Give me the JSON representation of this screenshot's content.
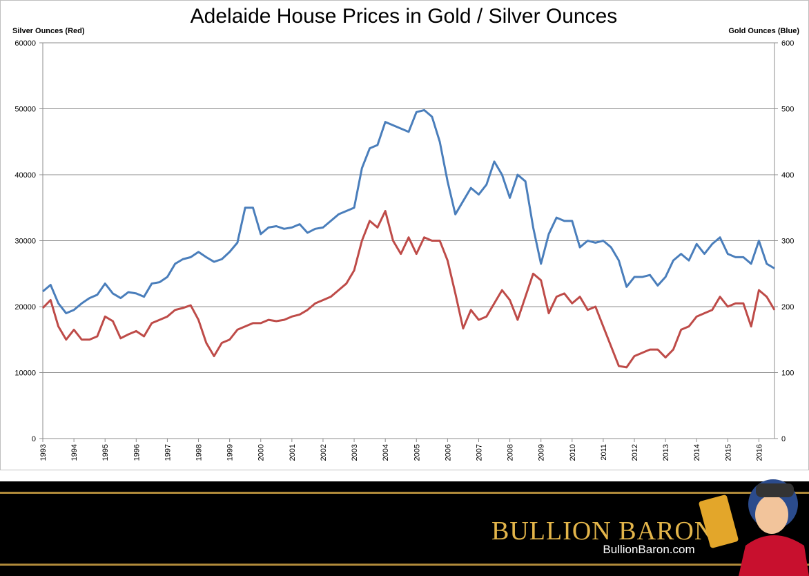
{
  "chart_data": {
    "type": "line",
    "title": "Adelaide House Prices in Gold / Silver Ounces",
    "y_label": "Silver Ounces (Red)",
    "y2_label": "Gold Ounces (Blue)",
    "x": [
      1993,
      1993.25,
      1993.5,
      1993.75,
      1994,
      1994.25,
      1994.5,
      1994.75,
      1995,
      1995.25,
      1995.5,
      1995.75,
      1996,
      1996.25,
      1996.5,
      1996.75,
      1997,
      1997.25,
      1997.5,
      1997.75,
      1998,
      1998.25,
      1998.5,
      1998.75,
      1999,
      1999.25,
      1999.5,
      1999.75,
      2000,
      2000.25,
      2000.5,
      2000.75,
      2001,
      2001.25,
      2001.5,
      2001.75,
      2002,
      2002.25,
      2002.5,
      2002.75,
      2003,
      2003.25,
      2003.5,
      2003.75,
      2004,
      2004.25,
      2004.5,
      2004.75,
      2005,
      2005.25,
      2005.5,
      2005.75,
      2006,
      2006.25,
      2006.5,
      2006.75,
      2007,
      2007.25,
      2007.5,
      2007.75,
      2008,
      2008.25,
      2008.5,
      2008.75,
      2009,
      2009.25,
      2009.5,
      2009.75,
      2010,
      2010.25,
      2010.5,
      2010.75,
      2011,
      2011.25,
      2011.5,
      2011.75,
      2012,
      2012.25,
      2012.5,
      2012.75,
      2013,
      2013.25,
      2013.5,
      2013.75,
      2014,
      2014.25,
      2014.5,
      2014.75,
      2015,
      2015.25,
      2015.5,
      2015.75,
      2016,
      2016.25,
      2016.5
    ],
    "xlim": [
      1993,
      2016.5
    ],
    "xticks": [
      1993,
      1994,
      1995,
      1996,
      1997,
      1998,
      1999,
      2000,
      2001,
      2002,
      2003,
      2004,
      2005,
      2006,
      2007,
      2008,
      2009,
      2010,
      2011,
      2012,
      2013,
      2014,
      2015,
      2016
    ],
    "ylim": [
      0,
      60000
    ],
    "yticks": [
      0,
      10000,
      20000,
      30000,
      40000,
      50000,
      60000
    ],
    "y2lim": [
      0,
      600
    ],
    "y2ticks": [
      0,
      100,
      200,
      300,
      400,
      500,
      600
    ],
    "grid": true,
    "series": [
      {
        "color": "#4a7ebb",
        "axis": "y2",
        "values": [
          223,
          233,
          205,
          190,
          195,
          205,
          213,
          218,
          235,
          220,
          213,
          222,
          220,
          215,
          235,
          237,
          245,
          265,
          272,
          275,
          283,
          275,
          268,
          272,
          283,
          297,
          350,
          350,
          310,
          320,
          322,
          318,
          320,
          325,
          312,
          318,
          320,
          330,
          340,
          345,
          350,
          410,
          440,
          445,
          480,
          475,
          470,
          465,
          495,
          498,
          488,
          450,
          390,
          340,
          360,
          380,
          370,
          385,
          420,
          400,
          365,
          400,
          390,
          320,
          265,
          310,
          335,
          330,
          330,
          290,
          300,
          297,
          300,
          290,
          270,
          230,
          245,
          245,
          248,
          232,
          245,
          270,
          280,
          270,
          295,
          280,
          295,
          305,
          280,
          275,
          275,
          265,
          300,
          265,
          258
        ]
      },
      {
        "color": "#be4b48",
        "values": [
          19800,
          21000,
          17000,
          15000,
          16500,
          15000,
          15000,
          15500,
          18500,
          17800,
          15200,
          15800,
          16300,
          15500,
          17500,
          18000,
          18500,
          19500,
          19800,
          20200,
          18000,
          14500,
          12500,
          14500,
          15000,
          16500,
          17000,
          17500,
          17500,
          18000,
          17800,
          18000,
          18500,
          18800,
          19500,
          20500,
          21000,
          21500,
          22500,
          23500,
          25500,
          30000,
          33000,
          32000,
          34500,
          30000,
          28000,
          30500,
          28000,
          30500,
          30000,
          30000,
          27000,
          22000,
          16700,
          19500,
          18000,
          18500,
          20500,
          22500,
          21000,
          18000,
          21500,
          25000,
          24000,
          19000,
          21500,
          22000,
          20500,
          21500,
          19500,
          20000,
          17000,
          14000,
          11000,
          10800,
          12500,
          13000,
          13500,
          13500,
          12300,
          13500,
          16500,
          17000,
          18500,
          19000,
          19500,
          21500,
          20000,
          20500,
          20500,
          17000,
          22500,
          21500,
          19500
        ]
      }
    ]
  },
  "footer": {
    "brand": "Bullion Baron",
    "url": "BullionBaron.com"
  }
}
